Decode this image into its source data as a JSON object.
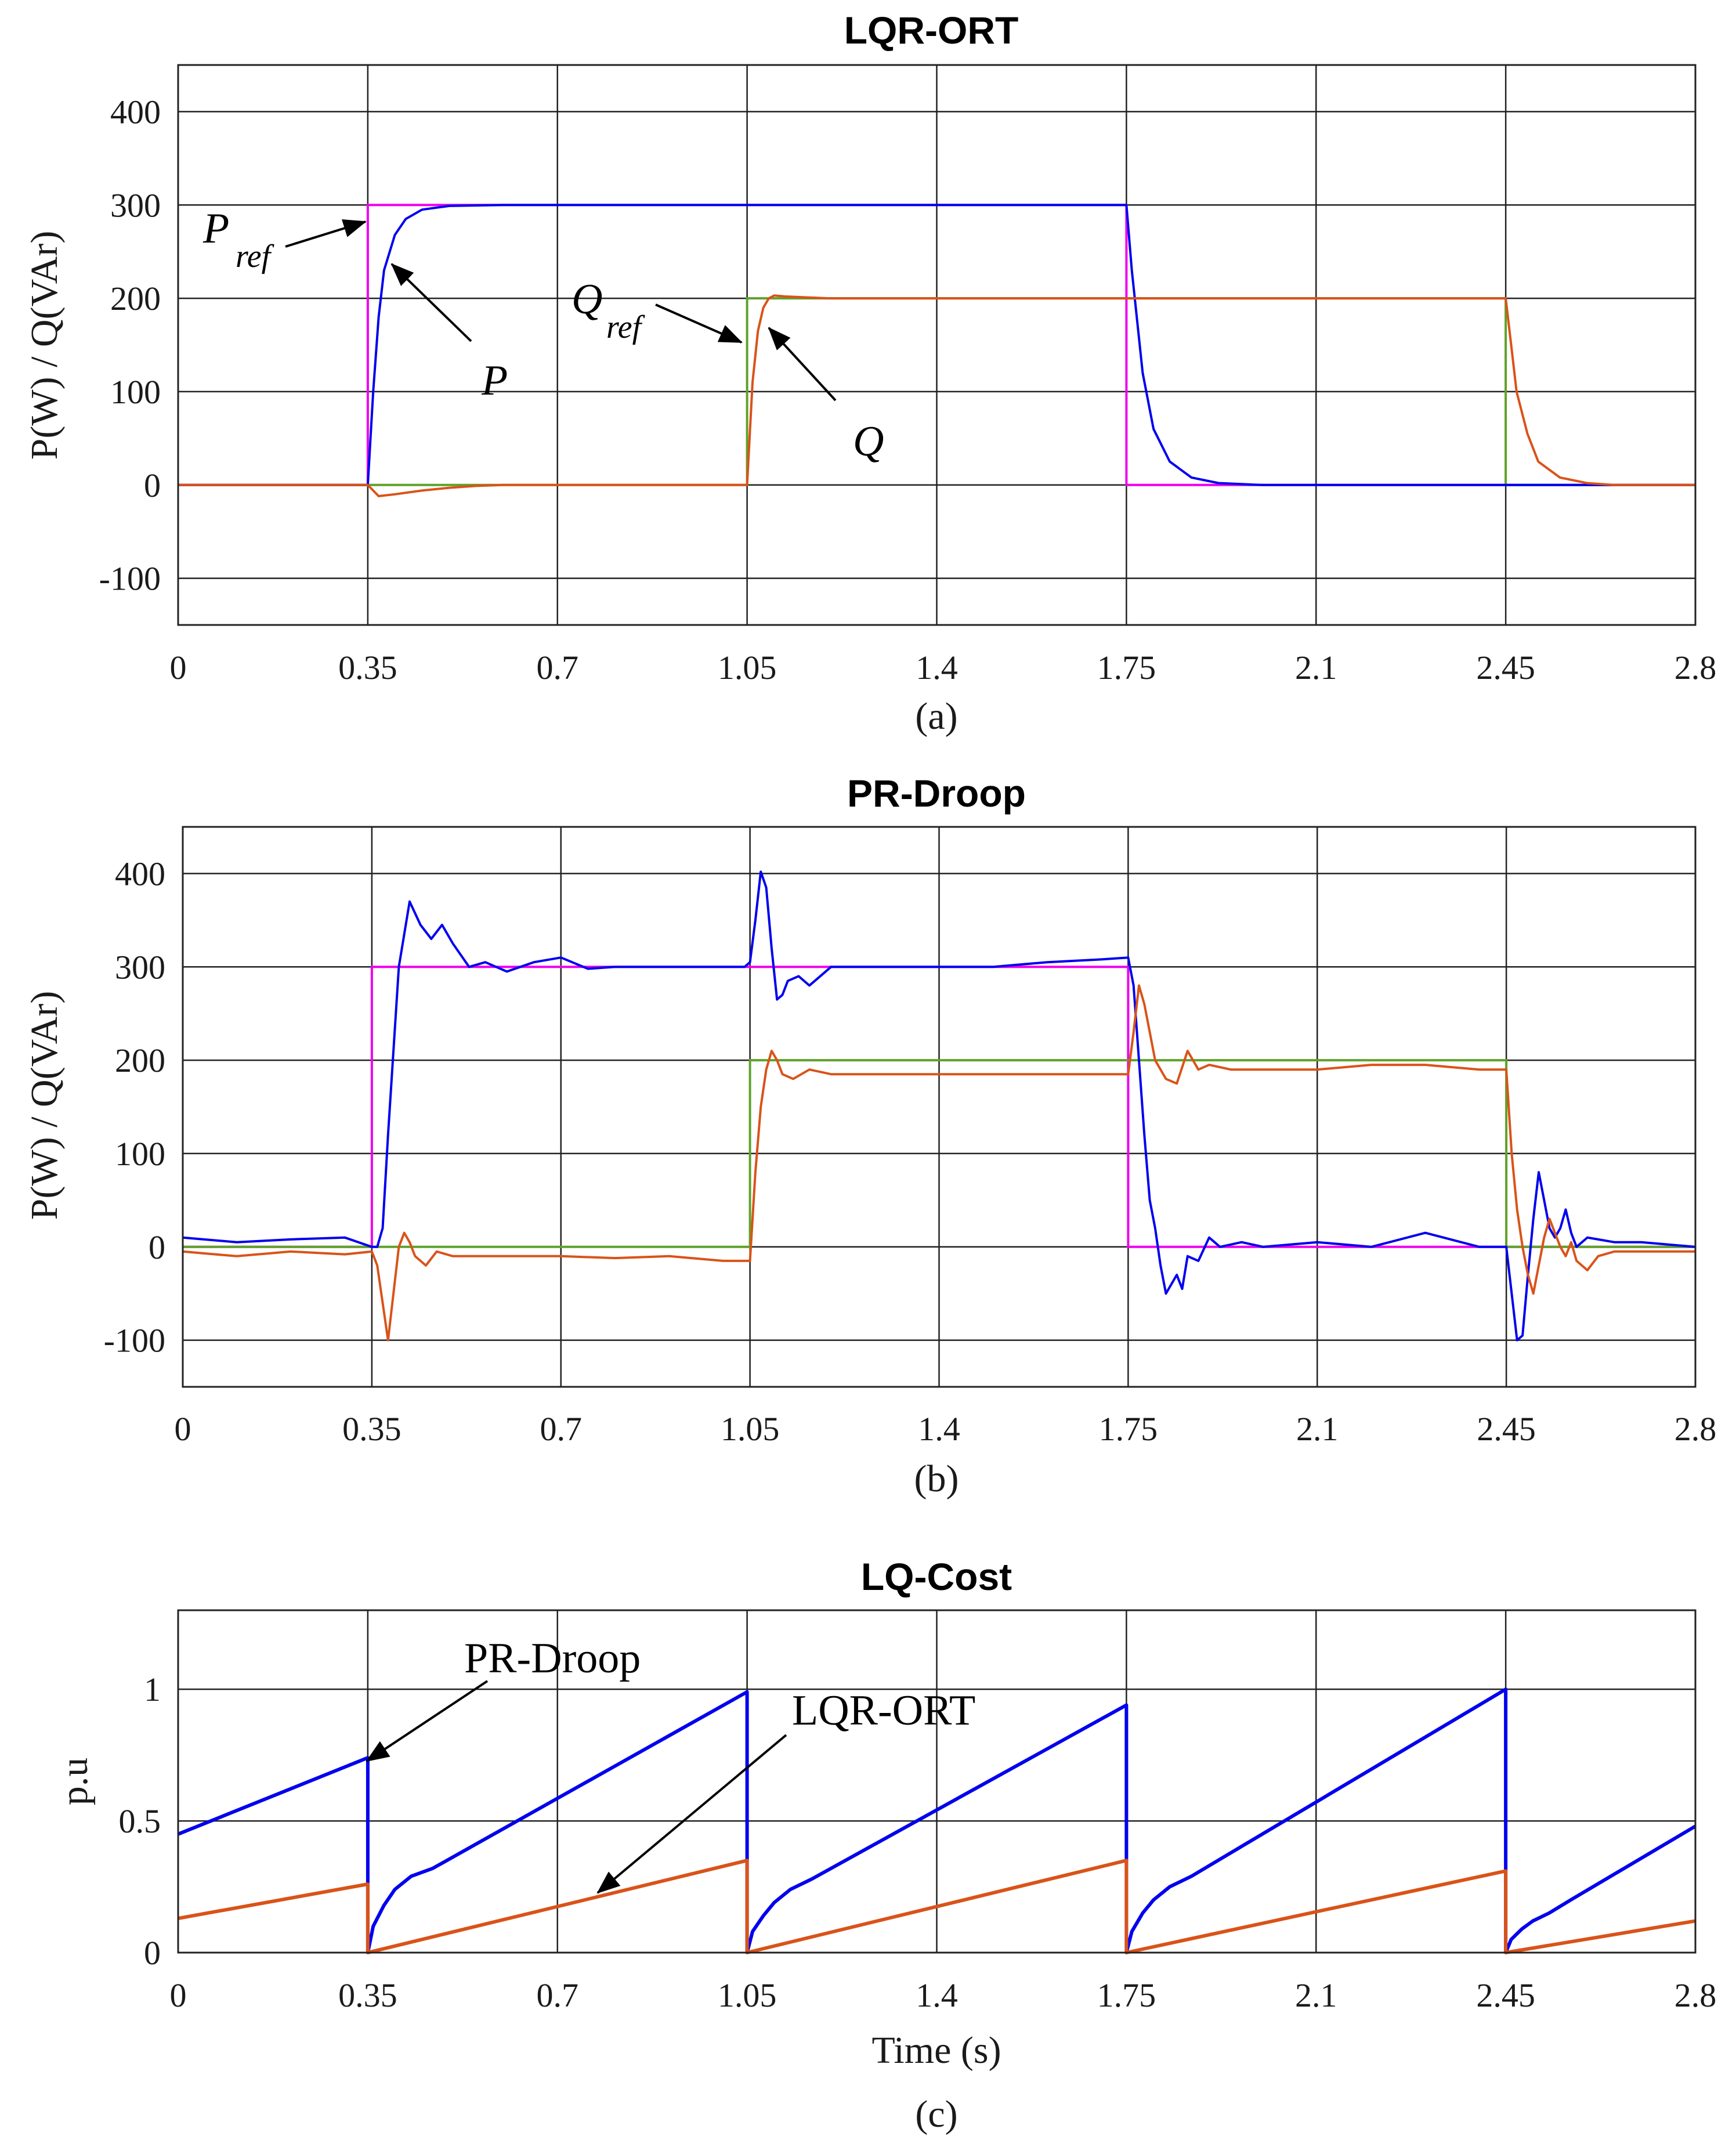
{
  "colors": {
    "P": "#0000ee",
    "Q": "#d95319",
    "Pref": "#ee00ee",
    "Qref": "#5fa22a",
    "grid": "#222222"
  },
  "chart_data": [
    {
      "id": "a",
      "type": "line",
      "title": "LQR-ORT",
      "caption": "(a)",
      "xlabel": "",
      "ylabel": "P(W) / Q(VAr)",
      "xlim": [
        0,
        2.8
      ],
      "ylim": [
        -150,
        450
      ],
      "xticks": [
        0,
        0.35,
        0.7,
        1.05,
        1.4,
        1.75,
        2.1,
        2.45,
        2.8
      ],
      "xtick_labels": [
        "0",
        "0.35",
        "0.7",
        "1.05",
        "1.4",
        "1.75",
        "2.1",
        "2.45",
        "2.8"
      ],
      "yticks": [
        -100,
        0,
        100,
        200,
        300,
        400
      ],
      "ytick_labels": [
        "-100",
        "0",
        "100",
        "200",
        "300",
        "400"
      ],
      "series": [
        {
          "name": "Pref",
          "color_key": "Pref",
          "x": [
            0,
            0.35,
            0.35,
            1.75,
            1.75,
            2.8
          ],
          "y": [
            0,
            0,
            300,
            300,
            0,
            0
          ]
        },
        {
          "name": "Qref",
          "color_key": "Qref",
          "x": [
            0,
            1.05,
            1.05,
            2.45,
            2.45,
            2.8
          ],
          "y": [
            0,
            0,
            200,
            200,
            0,
            0
          ]
        },
        {
          "name": "P",
          "color_key": "P",
          "x": [
            0,
            0.35,
            0.36,
            0.37,
            0.38,
            0.4,
            0.42,
            0.45,
            0.5,
            0.6,
            1.0,
            1.75,
            1.76,
            1.78,
            1.8,
            1.83,
            1.87,
            1.92,
            2.0,
            2.8
          ],
          "y": [
            0,
            0,
            100,
            180,
            230,
            268,
            285,
            295,
            299,
            300,
            300,
            300,
            230,
            120,
            60,
            25,
            8,
            2,
            0,
            0
          ]
        },
        {
          "name": "Q",
          "color_key": "Q",
          "x": [
            0,
            0.35,
            0.37,
            0.4,
            0.45,
            0.5,
            0.55,
            0.6,
            1.05,
            1.06,
            1.07,
            1.08,
            1.09,
            1.1,
            1.12,
            1.2,
            2.45,
            2.46,
            2.47,
            2.49,
            2.51,
            2.55,
            2.6,
            2.65,
            2.8
          ],
          "y": [
            0,
            0,
            -12,
            -10,
            -6,
            -3,
            -1,
            0,
            0,
            110,
            165,
            190,
            200,
            203,
            202,
            200,
            200,
            150,
            100,
            55,
            25,
            8,
            2,
            0,
            0
          ]
        }
      ],
      "annotations": [
        {
          "text": "P",
          "sub": "ref"
        },
        {
          "text": "P",
          "sub": ""
        },
        {
          "text": "Q",
          "sub": "ref"
        },
        {
          "text": "Q",
          "sub": ""
        }
      ]
    },
    {
      "id": "b",
      "type": "line",
      "title": "PR-Droop",
      "caption": "(b)",
      "xlabel": "",
      "ylabel": "P(W) / Q(VAr)",
      "xlim": [
        0,
        2.8
      ],
      "ylim": [
        -150,
        450
      ],
      "xticks": [
        0,
        0.35,
        0.7,
        1.05,
        1.4,
        1.75,
        2.1,
        2.45,
        2.8
      ],
      "xtick_labels": [
        "0",
        "0.35",
        "0.7",
        "1.05",
        "1.4",
        "1.75",
        "2.1",
        "2.45",
        "2.8"
      ],
      "yticks": [
        -100,
        0,
        100,
        200,
        300,
        400
      ],
      "ytick_labels": [
        "-100",
        "0",
        "100",
        "200",
        "300",
        "400"
      ],
      "series": [
        {
          "name": "Pref",
          "color_key": "Pref",
          "x": [
            0,
            0.35,
            0.35,
            1.75,
            1.75,
            2.8
          ],
          "y": [
            0,
            0,
            300,
            300,
            0,
            0
          ]
        },
        {
          "name": "Qref",
          "color_key": "Qref",
          "x": [
            0,
            1.05,
            1.05,
            2.45,
            2.45,
            2.8
          ],
          "y": [
            0,
            0,
            200,
            200,
            0,
            0
          ]
        },
        {
          "name": "P",
          "color_key": "P",
          "x": [
            0,
            0.1,
            0.2,
            0.3,
            0.35,
            0.36,
            0.37,
            0.38,
            0.4,
            0.42,
            0.44,
            0.46,
            0.48,
            0.5,
            0.53,
            0.56,
            0.6,
            0.65,
            0.7,
            0.75,
            0.8,
            0.9,
            1.0,
            1.04,
            1.05,
            1.06,
            1.07,
            1.08,
            1.09,
            1.1,
            1.11,
            1.12,
            1.14,
            1.16,
            1.2,
            1.3,
            1.4,
            1.5,
            1.6,
            1.7,
            1.75,
            1.76,
            1.77,
            1.78,
            1.79,
            1.8,
            1.81,
            1.82,
            1.84,
            1.85,
            1.86,
            1.88,
            1.9,
            1.92,
            1.96,
            2.0,
            2.1,
            2.2,
            2.3,
            2.4,
            2.45,
            2.46,
            2.47,
            2.48,
            2.49,
            2.5,
            2.51,
            2.52,
            2.53,
            2.54,
            2.55,
            2.56,
            2.57,
            2.58,
            2.6,
            2.62,
            2.65,
            2.7,
            2.8
          ],
          "y": [
            10,
            5,
            8,
            10,
            0,
            0,
            20,
            120,
            300,
            370,
            345,
            330,
            345,
            325,
            300,
            305,
            295,
            305,
            310,
            298,
            300,
            300,
            300,
            300,
            305,
            350,
            402,
            385,
            320,
            265,
            270,
            285,
            290,
            280,
            300,
            300,
            300,
            300,
            305,
            308,
            310,
            280,
            200,
            120,
            50,
            20,
            -20,
            -50,
            -30,
            -45,
            -10,
            -15,
            10,
            0,
            5,
            0,
            5,
            0,
            15,
            0,
            0,
            -50,
            -100,
            -95,
            -30,
            30,
            80,
            50,
            20,
            10,
            20,
            40,
            15,
            0,
            10,
            8,
            5,
            5,
            0
          ]
        },
        {
          "name": "Q",
          "color_key": "Q",
          "x": [
            0,
            0.1,
            0.2,
            0.3,
            0.35,
            0.36,
            0.37,
            0.38,
            0.39,
            0.4,
            0.41,
            0.42,
            0.43,
            0.45,
            0.47,
            0.5,
            0.6,
            0.7,
            0.8,
            0.9,
            1.0,
            1.05,
            1.06,
            1.07,
            1.08,
            1.09,
            1.1,
            1.11,
            1.13,
            1.16,
            1.2,
            1.3,
            1.5,
            1.7,
            1.75,
            1.76,
            1.77,
            1.78,
            1.79,
            1.8,
            1.82,
            1.84,
            1.86,
            1.88,
            1.9,
            1.94,
            2.0,
            2.1,
            2.2,
            2.3,
            2.4,
            2.45,
            2.46,
            2.47,
            2.48,
            2.49,
            2.5,
            2.51,
            2.52,
            2.53,
            2.54,
            2.55,
            2.56,
            2.57,
            2.58,
            2.6,
            2.62,
            2.65,
            2.7,
            2.8
          ],
          "y": [
            -5,
            -10,
            -5,
            -8,
            -5,
            -20,
            -60,
            -100,
            -50,
            0,
            15,
            5,
            -10,
            -20,
            -5,
            -10,
            -10,
            -10,
            -12,
            -10,
            -15,
            -15,
            80,
            150,
            190,
            210,
            200,
            185,
            180,
            190,
            185,
            185,
            185,
            185,
            185,
            230,
            280,
            260,
            230,
            200,
            180,
            175,
            210,
            190,
            195,
            190,
            190,
            190,
            195,
            195,
            190,
            190,
            100,
            40,
            0,
            -30,
            -50,
            -20,
            10,
            30,
            15,
            0,
            -10,
            5,
            -15,
            -25,
            -10,
            -5,
            -5,
            -5
          ]
        }
      ],
      "annotations": []
    },
    {
      "id": "c",
      "type": "line",
      "title": "LQ-Cost",
      "caption": "(c)",
      "xlabel": "Time (s)",
      "ylabel": "p.u",
      "xlim": [
        0,
        2.8
      ],
      "ylim": [
        0,
        1.3
      ],
      "xticks": [
        0,
        0.35,
        0.7,
        1.05,
        1.4,
        1.75,
        2.1,
        2.45,
        2.8
      ],
      "xtick_labels": [
        "0",
        "0.35",
        "0.7",
        "1.05",
        "1.4",
        "1.75",
        "2.1",
        "2.45",
        "2.8"
      ],
      "yticks": [
        0,
        0.5,
        1
      ],
      "ytick_labels": [
        "0",
        "0.5",
        "1"
      ],
      "series": [
        {
          "name": "PR-Droop",
          "color_key": "P",
          "x": [
            0,
            0.35,
            0.35,
            0.36,
            0.38,
            0.4,
            0.43,
            0.47,
            1.05,
            1.05,
            1.06,
            1.08,
            1.1,
            1.13,
            1.17,
            1.75,
            1.75,
            1.76,
            1.78,
            1.8,
            1.83,
            1.87,
            2.45,
            2.45,
            2.46,
            2.48,
            2.5,
            2.53,
            2.57,
            2.8
          ],
          "y": [
            0.45,
            0.74,
            0.0,
            0.1,
            0.18,
            0.24,
            0.29,
            0.32,
            0.99,
            0.0,
            0.08,
            0.14,
            0.19,
            0.24,
            0.28,
            0.94,
            0.0,
            0.08,
            0.15,
            0.2,
            0.25,
            0.29,
            1.0,
            0.0,
            0.05,
            0.09,
            0.12,
            0.15,
            0.2,
            0.48
          ]
        },
        {
          "name": "LQR-ORT",
          "color_key": "Q",
          "x": [
            0,
            0.35,
            0.35,
            1.05,
            1.05,
            1.75,
            1.75,
            2.45,
            2.45,
            2.8
          ],
          "y": [
            0.13,
            0.26,
            0.0,
            0.35,
            0.0,
            0.35,
            0.0,
            0.31,
            0.0,
            0.12
          ]
        }
      ],
      "annotations": [
        {
          "text": "PR-Droop",
          "sub": ""
        },
        {
          "text": "LQR-ORT",
          "sub": ""
        }
      ]
    }
  ]
}
